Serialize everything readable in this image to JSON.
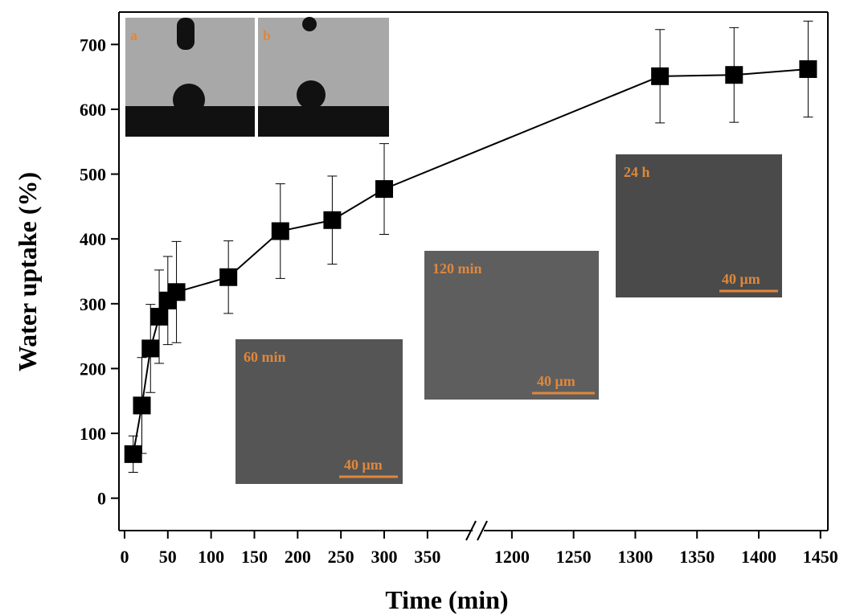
{
  "chart_data": {
    "type": "scatter-line",
    "x_label": "Time (min)",
    "y_label": "Water uptake (%)",
    "ylim": [
      -50,
      750
    ],
    "yticks": [
      0,
      100,
      200,
      300,
      400,
      500,
      600,
      700
    ],
    "x_segments": [
      {
        "xlim": [
          -6,
          404
        ],
        "xticks": [
          0,
          50,
          100,
          150,
          200,
          250,
          300,
          350
        ]
      },
      {
        "xlim": [
          1176,
          1456
        ],
        "xticks": [
          1200,
          1250,
          1300,
          1350,
          1400,
          1450
        ]
      }
    ],
    "series": [
      {
        "color": "#000000",
        "x": [
          10,
          20,
          30,
          40,
          50,
          60,
          120,
          180,
          240,
          300,
          1320,
          1380,
          1440
        ],
        "values": [
          68,
          143,
          231,
          280,
          305,
          318,
          341,
          412,
          429,
          477,
          651,
          653,
          662
        ],
        "errors": [
          28,
          74,
          68,
          72,
          68,
          78,
          56,
          73,
          68,
          70,
          72,
          73,
          74
        ]
      }
    ],
    "insets": [
      {
        "label": "a"
      },
      {
        "label": "b"
      },
      {
        "label": "60 min",
        "scale_bar": "40 μm"
      },
      {
        "label": "120 min",
        "scale_bar": "40 μm"
      },
      {
        "label": "24 h",
        "scale_bar": "40 μm"
      }
    ]
  }
}
